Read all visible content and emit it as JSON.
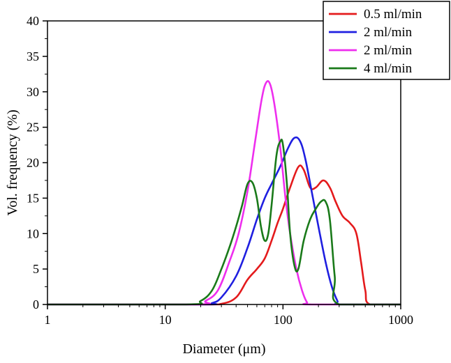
{
  "chart_data": {
    "type": "line",
    "xlabel": "Diameter (μm)",
    "ylabel": "Vol. frequency (%)",
    "xscale": "log",
    "xlim": [
      1,
      1000
    ],
    "ylim": [
      0,
      40
    ],
    "xticks": [
      1,
      10,
      100,
      1000
    ],
    "xtick_labels": [
      "1",
      "10",
      "100",
      "1000"
    ],
    "yticks": [
      0,
      5,
      10,
      15,
      20,
      25,
      30,
      35,
      40
    ],
    "ytick_labels": [
      "0",
      "5",
      "10",
      "15",
      "20",
      "25",
      "30",
      "35",
      "40"
    ],
    "grid": false,
    "legend_position": "top-right",
    "series": [
      {
        "name": "0.5 ml/min",
        "color": "#e41a1c",
        "x": [
          1,
          20,
          30,
          40,
          50,
          60,
          70,
          80,
          90,
          100,
          115,
          135,
          150,
          170,
          190,
          220,
          250,
          280,
          320,
          370,
          420,
          460,
          500,
          550,
          1000
        ],
        "y": [
          0,
          0,
          0.1,
          1,
          3.5,
          5,
          6.5,
          9,
          11.5,
          13.5,
          16.5,
          19.4,
          19,
          16.5,
          16.5,
          17.5,
          16.5,
          14.5,
          12.5,
          11.5,
          10,
          6,
          2,
          0,
          0
        ]
      },
      {
        "name": "2 ml/min",
        "color": "#1f1fe0",
        "x": [
          1,
          20,
          25,
          30,
          40,
          50,
          60,
          70,
          80,
          95,
          110,
          125,
          140,
          155,
          175,
          200,
          230,
          260,
          290,
          310,
          1000
        ],
        "y": [
          0,
          0,
          0.2,
          1,
          4,
          8,
          12,
          15,
          17,
          19.5,
          22,
          23.5,
          23,
          20.5,
          16,
          11,
          6,
          2.5,
          0.5,
          0,
          0
        ]
      },
      {
        "name": "2 ml/min",
        "color": "#ee2eee",
        "x": [
          1,
          18,
          22,
          28,
          35,
          42,
          50,
          58,
          66,
          72,
          78,
          85,
          95,
          105,
          115,
          130,
          145,
          160,
          175,
          1000
        ],
        "y": [
          0,
          0,
          0.5,
          2,
          6,
          10,
          16,
          23,
          29,
          31.3,
          31,
          28,
          22,
          15,
          10,
          5,
          2,
          0.3,
          0,
          0
        ]
      },
      {
        "name": "4 ml/min",
        "color": "#1a7a1a",
        "x": [
          1,
          15,
          20,
          25,
          30,
          35,
          40,
          45,
          50,
          55,
          60,
          65,
          70,
          75,
          80,
          88,
          95,
          100,
          108,
          115,
          125,
          135,
          150,
          170,
          190,
          210,
          230,
          250,
          275,
          300,
          1000
        ],
        "y": [
          0,
          0,
          0.5,
          2,
          5,
          8,
          11,
          14,
          17,
          17.2,
          15,
          11,
          9,
          10,
          14,
          21,
          23,
          22.5,
          17,
          10,
          5.5,
          5,
          9,
          12,
          13.5,
          14.5,
          14.5,
          12,
          4,
          0,
          0
        ]
      }
    ]
  }
}
